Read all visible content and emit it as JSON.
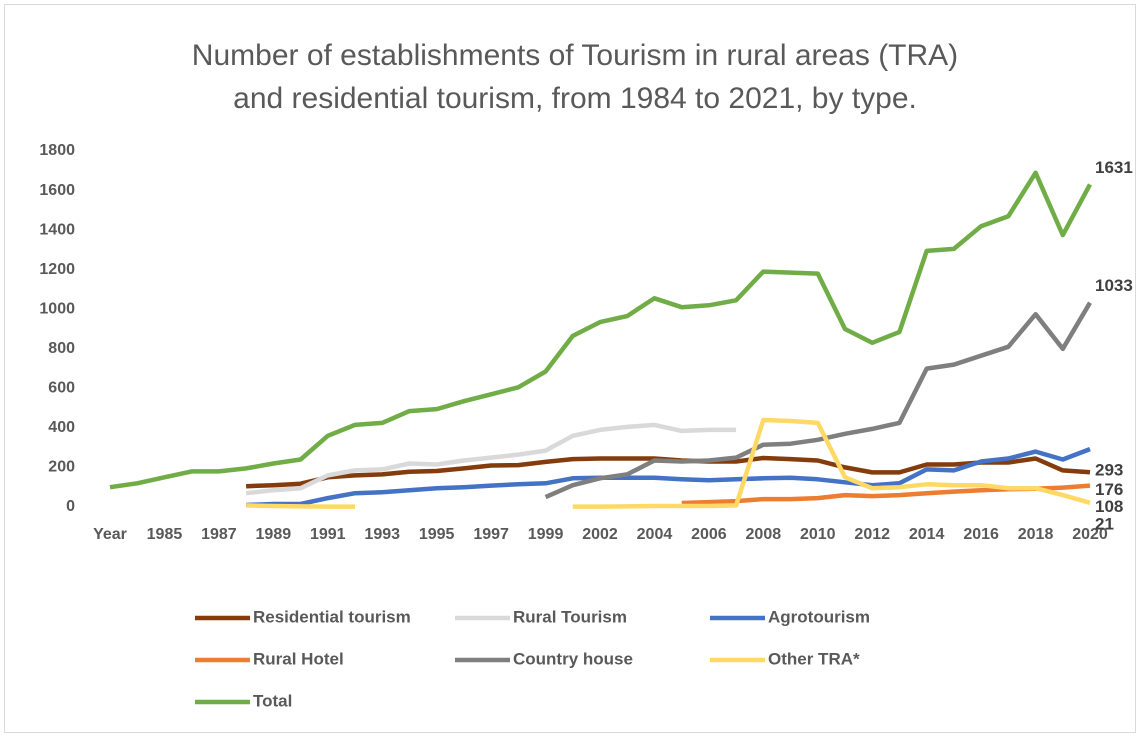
{
  "chart_data": {
    "type": "line",
    "title": [
      "Number of establishments of Tourism in rural areas (TRA)",
      "and residential tourism, from 1984 to 2021, by type."
    ],
    "categories": [
      "Year",
      null,
      "1985",
      null,
      "1987",
      null,
      "1989",
      null,
      "1991",
      null,
      "1993",
      null,
      "1995",
      null,
      "1997",
      null,
      "1999",
      null,
      "2002",
      null,
      "2004",
      null,
      "2006",
      null,
      "2008",
      null,
      "2010",
      null,
      "2012",
      null,
      "2014",
      null,
      "2016",
      null,
      "2018",
      null,
      "2020"
    ],
    "series": [
      {
        "name": "Residential tourism",
        "color": "#843c0c",
        "values": [
          null,
          null,
          null,
          null,
          null,
          105,
          110,
          118,
          150,
          160,
          165,
          178,
          182,
          195,
          210,
          212,
          228,
          242,
          245,
          245,
          245,
          235,
          230,
          230,
          248,
          242,
          235,
          200,
          175,
          175,
          215,
          215,
          225,
          225,
          245,
          185,
          176
        ]
      },
      {
        "name": "Rural Tourism",
        "color": "#d9d9d9",
        "values": [
          null,
          null,
          null,
          null,
          null,
          70,
          85,
          95,
          160,
          185,
          190,
          220,
          215,
          235,
          250,
          265,
          285,
          360,
          390,
          405,
          415,
          385,
          390,
          390,
          null,
          null,
          null,
          null,
          null,
          null,
          null,
          null,
          null,
          null,
          null,
          null,
          null
        ]
      },
      {
        "name": "Agrotourism",
        "color": "#4472c4",
        "values": [
          null,
          null,
          null,
          null,
          null,
          10,
          15,
          15,
          45,
          70,
          75,
          85,
          95,
          100,
          108,
          115,
          120,
          145,
          148,
          148,
          148,
          140,
          135,
          140,
          145,
          148,
          140,
          125,
          110,
          120,
          190,
          185,
          230,
          245,
          280,
          240,
          293
        ]
      },
      {
        "name": "Rural Hotel",
        "color": "#ed7d31",
        "values": [
          null,
          null,
          null,
          null,
          null,
          null,
          null,
          null,
          null,
          null,
          null,
          null,
          null,
          null,
          null,
          null,
          null,
          null,
          null,
          null,
          null,
          20,
          25,
          30,
          40,
          40,
          45,
          60,
          55,
          60,
          70,
          78,
          85,
          90,
          92,
          98,
          108
        ]
      },
      {
        "name": "Country house",
        "color": "#7f7f7f",
        "values": [
          null,
          null,
          null,
          null,
          null,
          null,
          null,
          null,
          null,
          null,
          null,
          null,
          null,
          null,
          null,
          null,
          50,
          110,
          145,
          165,
          235,
          230,
          235,
          250,
          315,
          320,
          340,
          370,
          395,
          425,
          700,
          720,
          765,
          810,
          975,
          800,
          1033
        ]
      },
      {
        "name": "Other TRA*",
        "color": "#ffd966",
        "values": [
          null,
          null,
          null,
          null,
          null,
          8,
          5,
          3,
          2,
          2,
          null,
          null,
          null,
          null,
          null,
          null,
          null,
          2,
          2,
          3,
          5,
          5,
          5,
          8,
          440,
          435,
          425,
          150,
          95,
          100,
          115,
          110,
          110,
          95,
          95,
          60,
          21
        ]
      },
      {
        "name": "Total",
        "color": "#70ad47",
        "values": [
          100,
          120,
          150,
          180,
          180,
          195,
          220,
          240,
          360,
          415,
          425,
          485,
          495,
          535,
          570,
          605,
          685,
          865,
          935,
          965,
          1055,
          1010,
          1020,
          1045,
          1190,
          1185,
          1180,
          900,
          830,
          885,
          1295,
          1305,
          1420,
          1470,
          1690,
          1375,
          1631
        ]
      }
    ],
    "ylim": [
      0,
      1800
    ],
    "yticks": [
      0,
      200,
      400,
      600,
      800,
      1000,
      1200,
      1400,
      1600,
      1800
    ],
    "grid": false,
    "legend": "bottom"
  }
}
